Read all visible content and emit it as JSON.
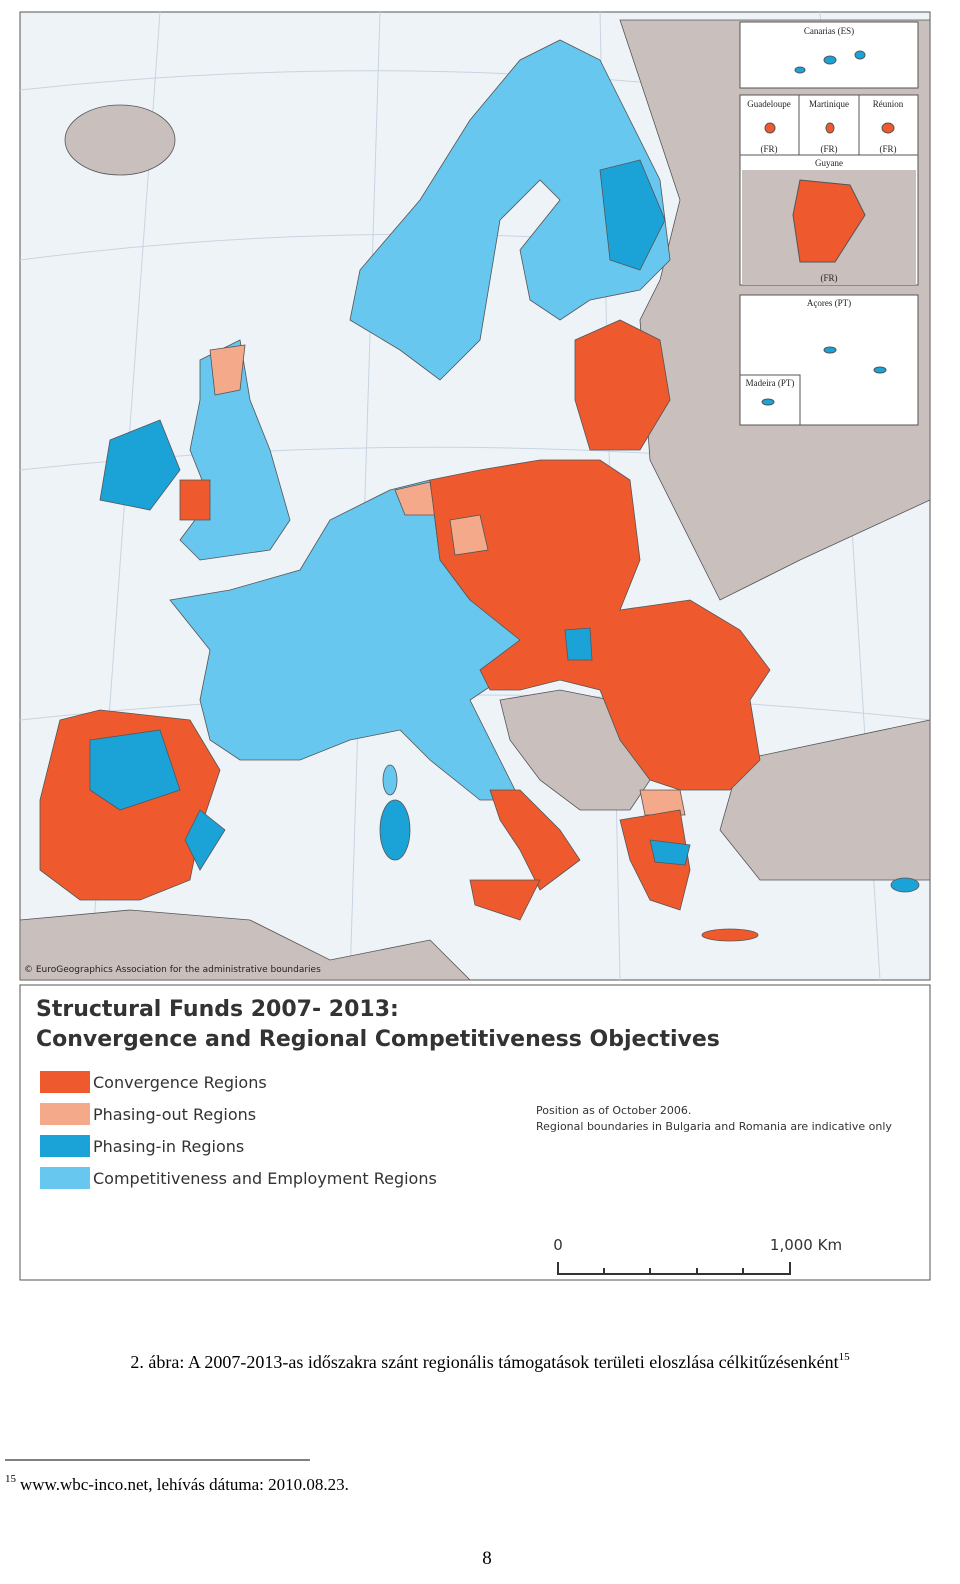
{
  "map": {
    "insets": [
      "Canarias (ES)",
      "Guadeloupe",
      "(FR)",
      "Martinique",
      "(FR)",
      "Réunion",
      "(FR)",
      "Guyane",
      "(FR)",
      "Açores (PT)",
      "Madeira (PT)"
    ],
    "copyright": "© EuroGeographics Association for the administrative boundaries"
  },
  "legend": {
    "title": [
      "Structural Funds 2007- 2013:",
      "Convergence and Regional Competitiveness Objectives"
    ],
    "items": [
      {
        "label": "Convergence Regions",
        "color": "#ee5a2e"
      },
      {
        "label": "Phasing-out Regions",
        "color": "#f4a98a"
      },
      {
        "label": "Phasing-in Regions",
        "color": "#1ba3d8"
      },
      {
        "label": "Competitiveness and Employment Regions",
        "color": "#67c7ef"
      }
    ],
    "note": [
      "Position as of October 2006.",
      "Regional boundaries in Bulgaria and Romania are indicative only"
    ],
    "scale": [
      "0",
      "1,000 Km"
    ]
  },
  "caption": {
    "text": "2. ábra: A 2007-2013-as időszakra szánt regionális támogatások területi eloszlása célkitűzésenként",
    "mark": "15"
  },
  "footnote": {
    "mark": "15",
    "text": "www.wbc-inco.net, lehívás dátuma: 2010.08.23."
  },
  "page_number": "8"
}
